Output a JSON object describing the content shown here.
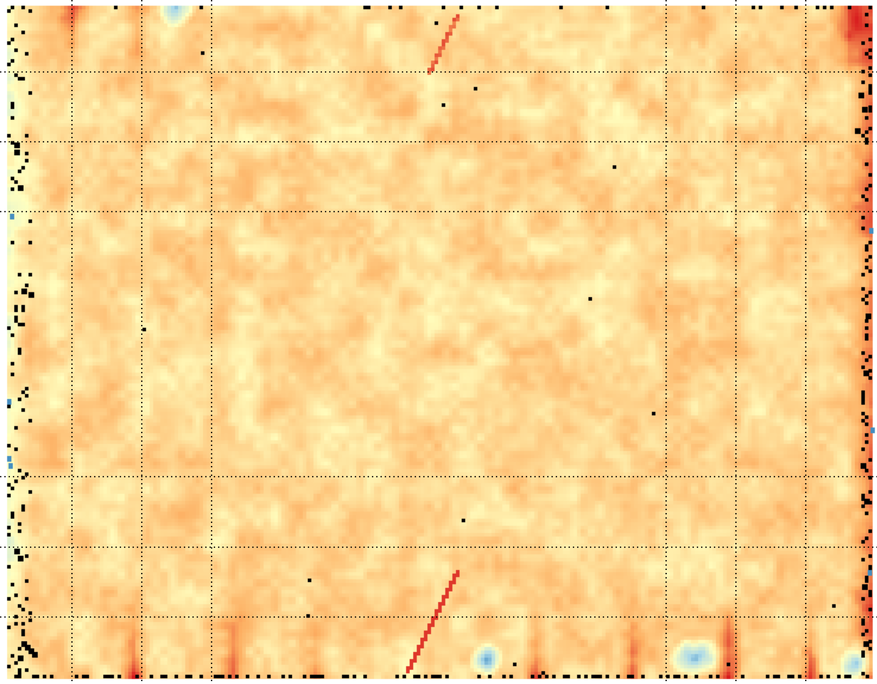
{
  "view": {
    "kind": "thermal-heatmap",
    "grid_visible": true,
    "grid_style": "dotted",
    "vertical_grid_lines": 11,
    "horizontal_grid_lines": 9
  },
  "colors": {
    "background": "#ffffff",
    "grid": "#000000",
    "dropout": "#000000",
    "colormap": [
      "#2c7bb6",
      "#abd9e9",
      "#ffffbf",
      "#fdae61",
      "#d7191c"
    ]
  }
}
